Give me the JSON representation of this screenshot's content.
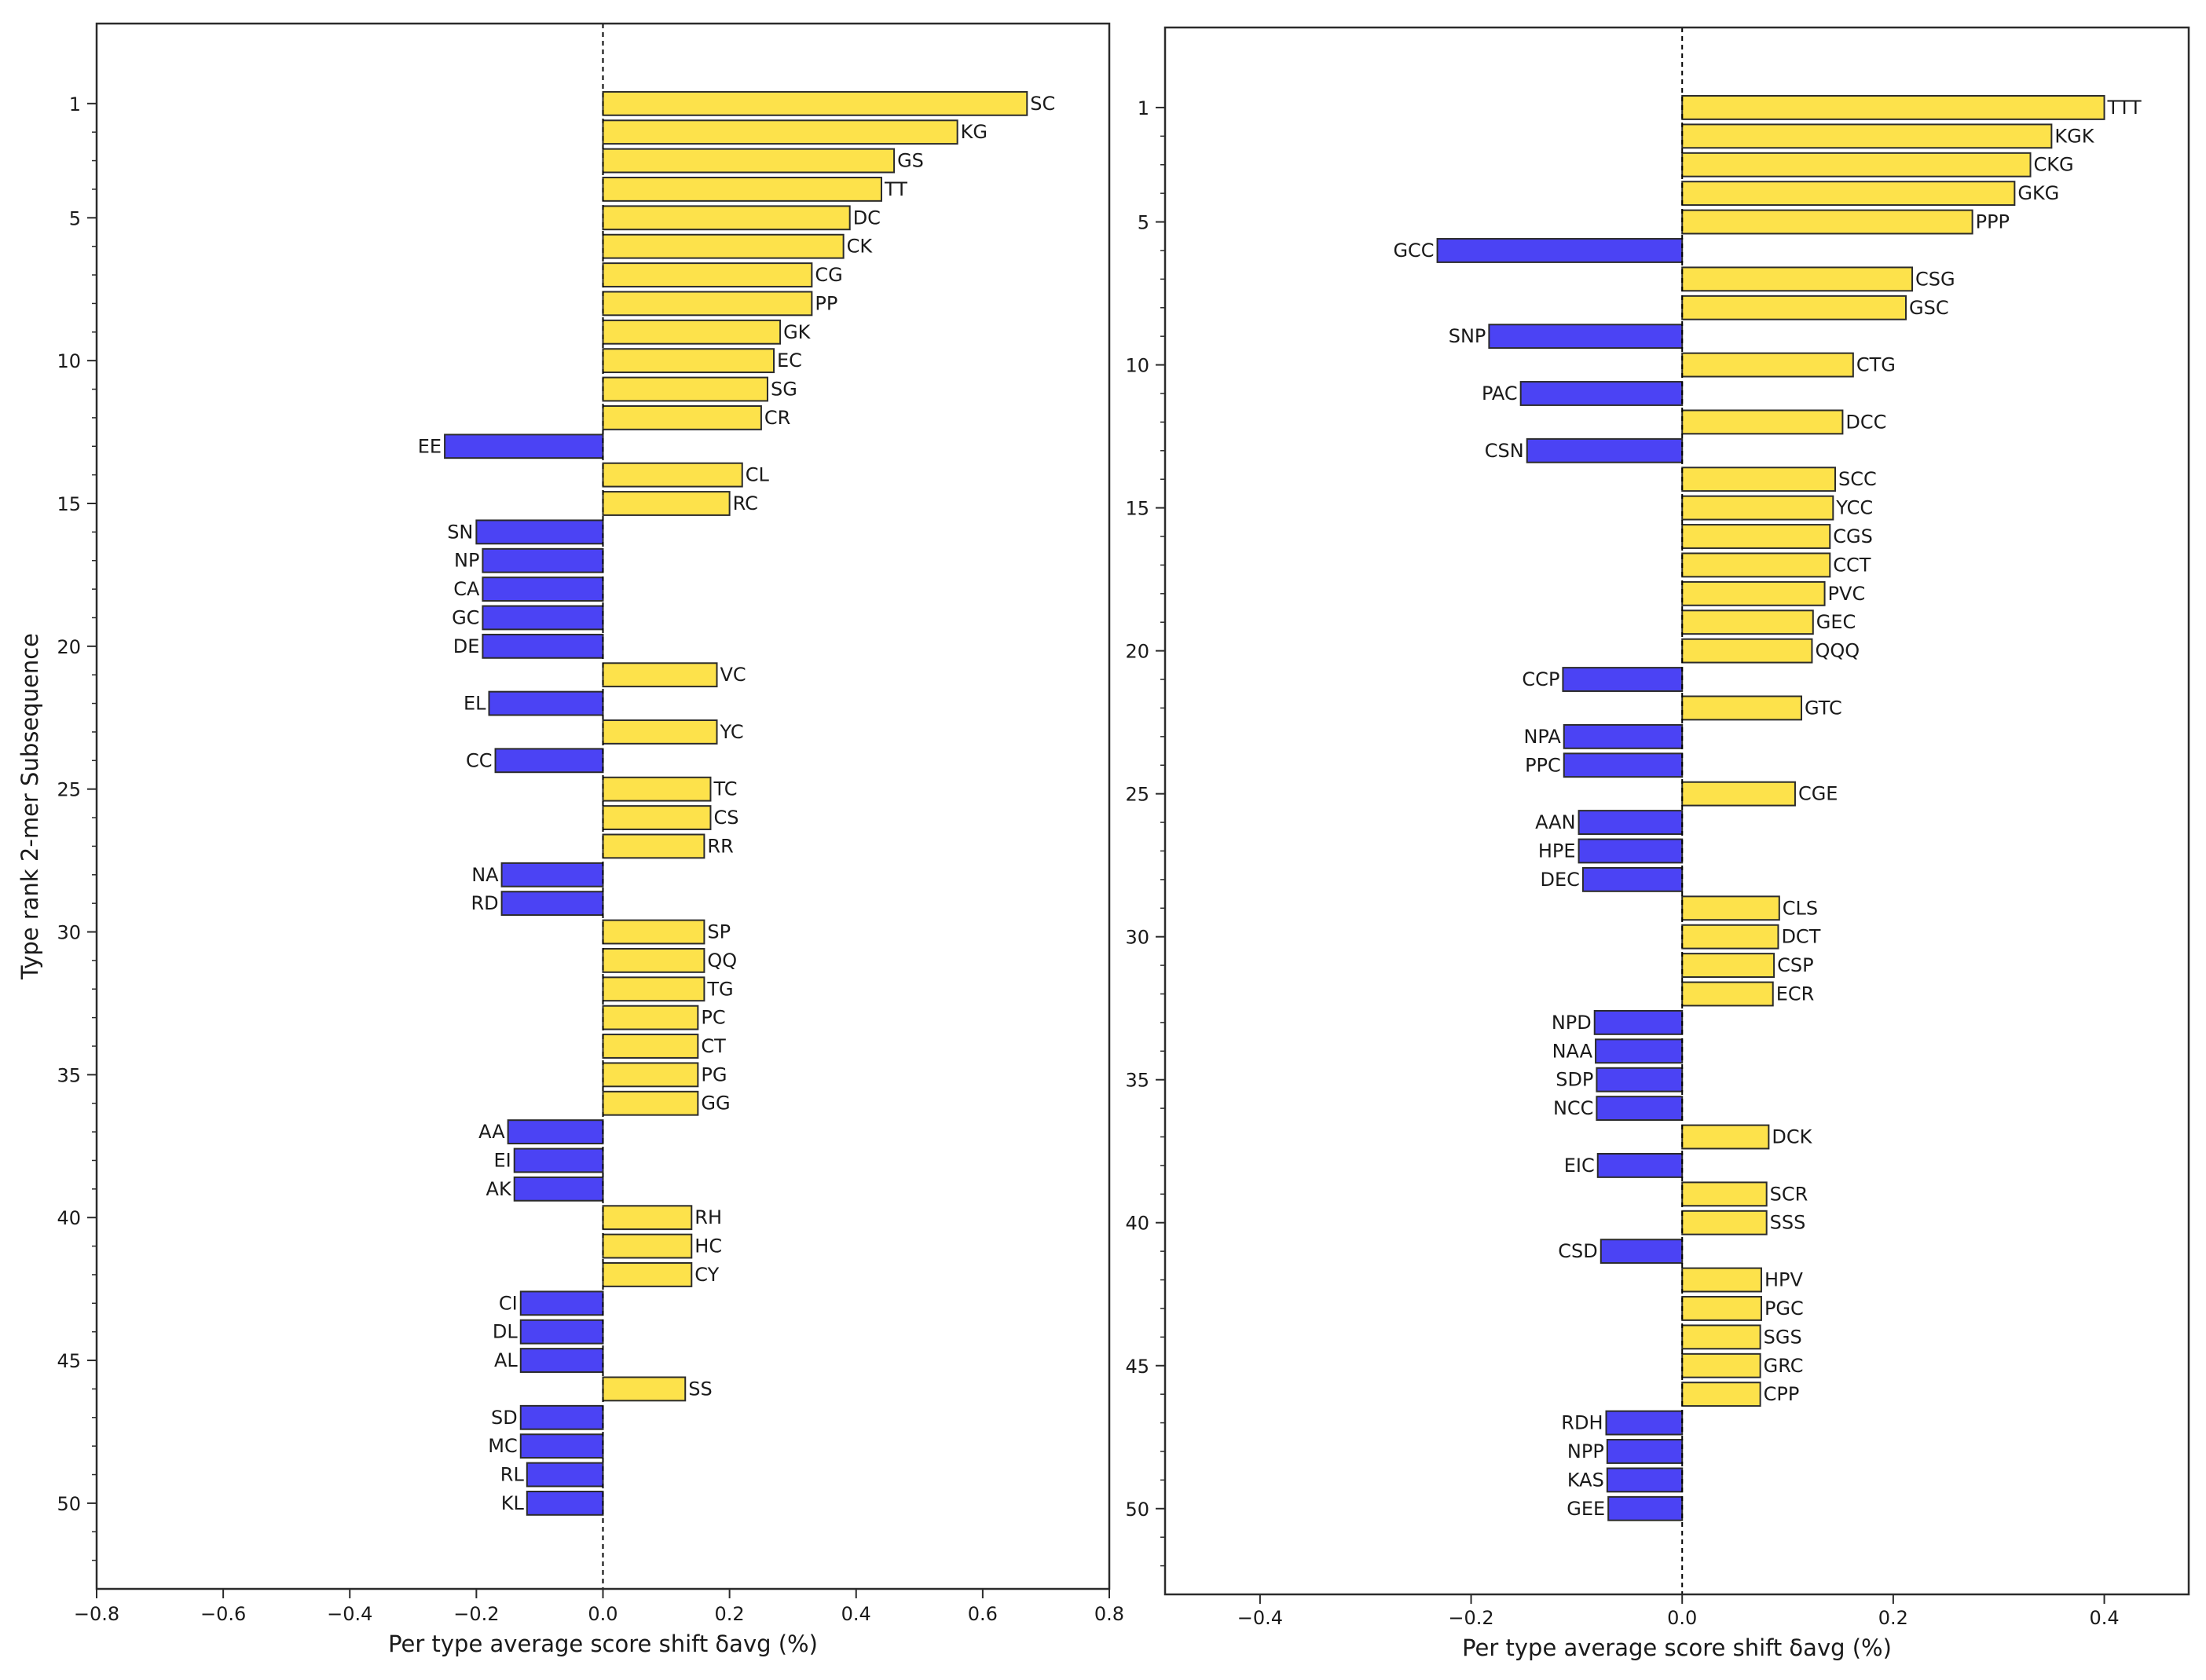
{
  "chart_data": [
    {
      "type": "bar",
      "orientation": "horizontal",
      "xlabel": "Per type average score shift δavg (%)",
      "ylabel": "Type rank 2-mer Subsequence",
      "xlim": [
        -0.8,
        0.8
      ],
      "ylim": [
        53,
        -1.8
      ],
      "xticks": [
        -0.8,
        -0.6,
        -0.4,
        -0.2,
        0.0,
        0.2,
        0.4,
        0.6,
        0.8
      ],
      "xtick_labels": [
        "−0.8",
        "−0.6",
        "−0.4",
        "−0.2",
        "0.0",
        "0.2",
        "0.4",
        "0.6",
        "0.8"
      ],
      "yticks": [
        1,
        5,
        10,
        15,
        20,
        25,
        30,
        35,
        40,
        45,
        50
      ],
      "ytick_labels": [
        "1",
        "5",
        "10",
        "15",
        "20",
        "25",
        "30",
        "35",
        "40",
        "45",
        "50"
      ],
      "colors": {
        "positive": "#FDE24B",
        "negative": "#4B43F4"
      },
      "categories": [
        "SC",
        "KG",
        "GS",
        "TT",
        "DC",
        "CK",
        "CG",
        "PP",
        "GK",
        "EC",
        "SG",
        "CR",
        "EE",
        "CL",
        "RC",
        "SN",
        "NP",
        "CA",
        "GC",
        "DE",
        "VC",
        "EL",
        "YC",
        "CC",
        "TC",
        "CS",
        "RR",
        "NA",
        "RD",
        "SP",
        "QQ",
        "TG",
        "PC",
        "CT",
        "PG",
        "GG",
        "AA",
        "EI",
        "AK",
        "RH",
        "HC",
        "CY",
        "CI",
        "DL",
        "AL",
        "SS",
        "SD",
        "MC",
        "RL",
        "KL"
      ],
      "values": [
        0.67,
        0.56,
        0.46,
        0.44,
        0.39,
        0.38,
        0.33,
        0.33,
        0.28,
        0.27,
        0.26,
        0.25,
        -0.25,
        0.22,
        0.2,
        -0.2,
        -0.19,
        -0.19,
        -0.19,
        -0.19,
        0.18,
        -0.18,
        0.18,
        -0.17,
        0.17,
        0.17,
        0.16,
        -0.16,
        -0.16,
        0.16,
        0.16,
        0.16,
        0.15,
        0.15,
        0.15,
        0.15,
        -0.15,
        -0.14,
        -0.14,
        0.14,
        0.14,
        0.14,
        -0.13,
        -0.13,
        -0.13,
        0.13,
        -0.13,
        -0.13,
        -0.12,
        -0.12
      ]
    },
    {
      "type": "bar",
      "orientation": "horizontal",
      "xlabel": "Per type average score shift δavg (%)",
      "ylabel": "",
      "xlim": [
        -0.49,
        0.48
      ],
      "ylim": [
        53,
        -1.8
      ],
      "xticks": [
        -0.4,
        -0.2,
        0.0,
        0.2,
        0.4
      ],
      "xtick_labels": [
        "−0.4",
        "−0.2",
        "0.0",
        "0.2",
        "0.4"
      ],
      "yticks": [
        1,
        5,
        10,
        15,
        20,
        25,
        30,
        35,
        40,
        45,
        50
      ],
      "ytick_labels": [
        "1",
        "5",
        "10",
        "15",
        "20",
        "25",
        "30",
        "35",
        "40",
        "45",
        "50"
      ],
      "colors": {
        "positive": "#FDE24B",
        "negative": "#4B43F4"
      },
      "categories": [
        "TTT",
        "KGK",
        "CKG",
        "GKG",
        "PPP",
        "GCC",
        "CSG",
        "GSC",
        "SNP",
        "CTG",
        "PAC",
        "DCC",
        "CSN",
        "SCC",
        "YCC",
        "CGS",
        "CCT",
        "PVC",
        "GEC",
        "QQQ",
        "CCP",
        "GTC",
        "NPA",
        "PPC",
        "CGE",
        "AAN",
        "HPE",
        "DEC",
        "CLS",
        "DCT",
        "CSP",
        "ECR",
        "NPD",
        "NAA",
        "SDP",
        "NCC",
        "DCK",
        "EIC",
        "SCR",
        "SSS",
        "CSD",
        "HPV",
        "PGC",
        "SGS",
        "GRC",
        "CPP",
        "RDH",
        "NPP",
        "KAS",
        "GEE"
      ],
      "values": [
        0.4,
        0.35,
        0.33,
        0.315,
        0.275,
        -0.232,
        0.218,
        0.212,
        -0.183,
        0.162,
        -0.153,
        0.152,
        -0.147,
        0.145,
        0.143,
        0.14,
        0.14,
        0.135,
        0.124,
        0.123,
        -0.113,
        0.113,
        -0.112,
        -0.112,
        0.107,
        -0.098,
        -0.098,
        -0.094,
        0.092,
        0.091,
        0.087,
        0.086,
        -0.083,
        -0.082,
        -0.081,
        -0.081,
        0.082,
        -0.08,
        0.08,
        0.08,
        -0.077,
        0.075,
        0.075,
        0.074,
        0.074,
        0.074,
        -0.072,
        -0.071,
        -0.071,
        -0.07
      ]
    }
  ]
}
